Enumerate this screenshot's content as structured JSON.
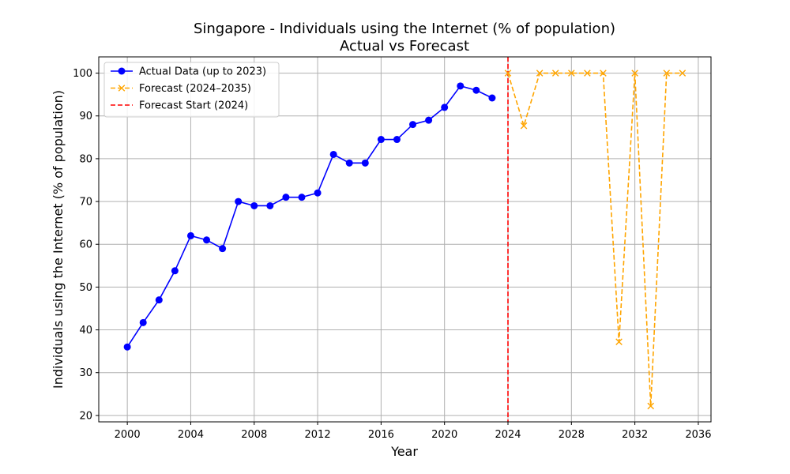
{
  "chart_data": {
    "type": "line",
    "title": "Singapore - Individuals using the Internet (% of population)",
    "subtitle": "Actual vs Forecast",
    "xlabel": "Year",
    "ylabel": "Individuals using the Internet (% of population)",
    "xlim": [
      1998.2,
      2036.8
    ],
    "ylim": [
      18.5,
      103.8
    ],
    "x_ticks": [
      2000,
      2004,
      2008,
      2012,
      2016,
      2020,
      2024,
      2028,
      2032,
      2036
    ],
    "y_ticks": [
      20,
      30,
      40,
      50,
      60,
      70,
      80,
      90,
      100
    ],
    "grid": true,
    "legend_position": "top-left",
    "series": [
      {
        "name": "Actual Data (up to 2023)",
        "color": "#0000ff",
        "line_style": "solid",
        "marker": "circle",
        "x": [
          2000,
          2001,
          2002,
          2003,
          2004,
          2005,
          2006,
          2007,
          2008,
          2009,
          2010,
          2011,
          2012,
          2013,
          2014,
          2015,
          2016,
          2017,
          2018,
          2019,
          2020,
          2021,
          2022,
          2023
        ],
        "values": [
          36,
          41.7,
          47,
          53.8,
          62,
          61,
          59,
          70,
          69,
          69,
          71,
          71,
          72,
          81,
          79,
          79,
          84.5,
          84.5,
          88,
          89,
          92,
          97,
          96,
          94.2
        ]
      },
      {
        "name": "Forecast (2024–2035)",
        "color": "#ffa500",
        "line_style": "dashed",
        "marker": "x",
        "x": [
          2024,
          2025,
          2026,
          2027,
          2028,
          2029,
          2030,
          2031,
          2032,
          2033,
          2034,
          2035
        ],
        "values": [
          100,
          87.7,
          100,
          100,
          100,
          100,
          100,
          37.2,
          100,
          22.2,
          100,
          100
        ]
      }
    ],
    "vlines": [
      {
        "name": "Forecast Start (2024)",
        "x": 2024,
        "color": "#ff0000",
        "line_style": "dashed"
      }
    ]
  }
}
